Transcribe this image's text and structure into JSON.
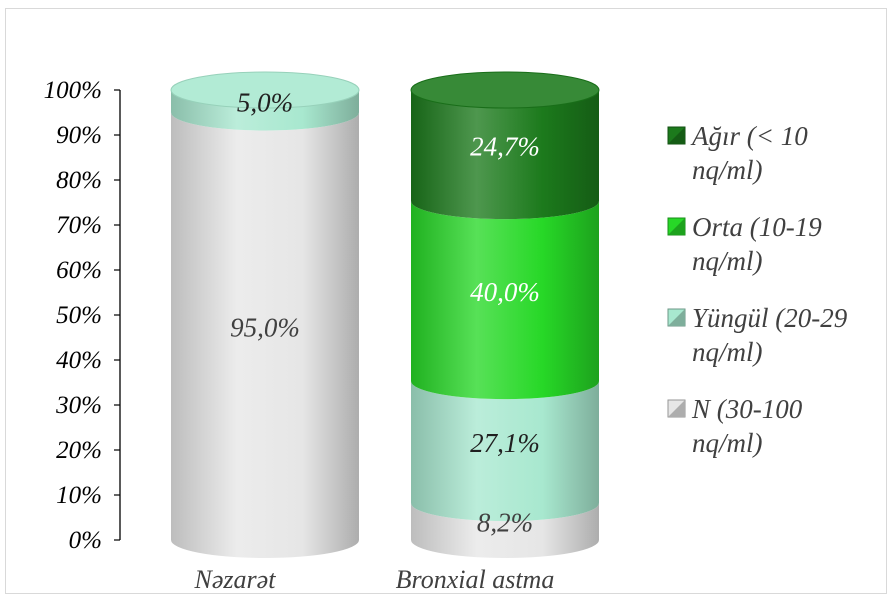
{
  "chart_data": {
    "type": "bar",
    "stacked": true,
    "percent": true,
    "style": "3d-cylinder",
    "categories": [
      "Nəzarət",
      "Bronxial astma"
    ],
    "series": [
      {
        "name": "N (30-100 nq/ml)",
        "values": [
          95.0,
          8.2
        ],
        "labels": [
          "95,0%",
          "8,2%"
        ],
        "color": "#e6e6e6",
        "label_color": "#404040"
      },
      {
        "name": "Yüngül (20-29 nq/ml)",
        "values": [
          5.0,
          27.1
        ],
        "labels": [
          "5,0%",
          "27,1%"
        ],
        "color": "#a8e8cf",
        "label_color": "#202020"
      },
      {
        "name": "Orta (10-19 nq/ml)",
        "values": [
          0,
          40.0
        ],
        "labels": [
          "",
          "40,0%"
        ],
        "color": "#27d827",
        "label_color": "#ffffff"
      },
      {
        "name": "Ağır (< 10 nq/ml)",
        "values": [
          0,
          24.7
        ],
        "labels": [
          "",
          "24,7%"
        ],
        "color": "#1c7a1c",
        "label_color": "#ffffff"
      }
    ],
    "y_ticks": [
      "0%",
      "10%",
      "20%",
      "30%",
      "40%",
      "50%",
      "60%",
      "70%",
      "80%",
      "90%",
      "100%"
    ],
    "ylim": [
      0,
      100
    ],
    "grid": false,
    "legend": {
      "position": "right",
      "entries": [
        {
          "line1": "Ağır (< 10",
          "line2": "nq/ml)",
          "color": "#1c7a1c"
        },
        {
          "line1": "Orta (10-19",
          "line2": "nq/ml)",
          "color": "#27d827"
        },
        {
          "line1": "Yüngül (20-29",
          "line2": "nq/ml)",
          "color": "#a8e8cf"
        },
        {
          "line1": "N (30-100",
          "line2": "nq/ml)",
          "color": "#e6e6e6"
        }
      ]
    }
  }
}
